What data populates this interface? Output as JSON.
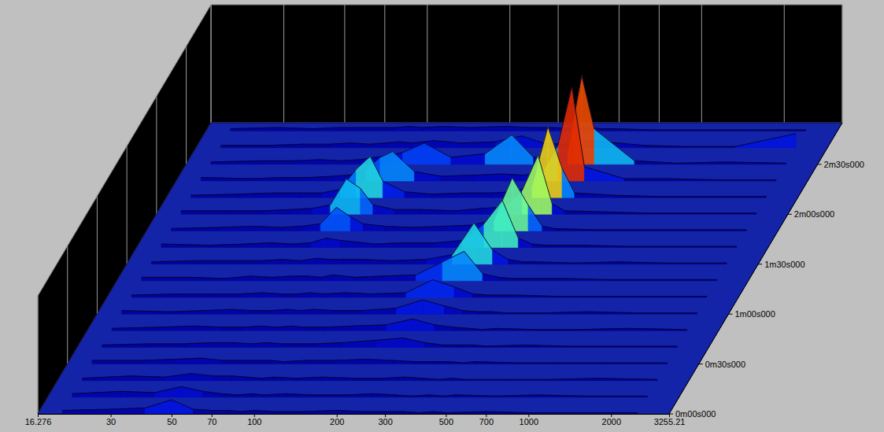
{
  "chart_data": {
    "type": "waterfall3d",
    "log": "x",
    "grid": true,
    "x": [
      20,
      30,
      40,
      50,
      60,
      70,
      80,
      90,
      100,
      120,
      150,
      200,
      250,
      300,
      350,
      400,
      450,
      500,
      700,
      1000,
      1500,
      2500
    ],
    "xlim": [
      16.276,
      3255.21
    ],
    "xticks": [
      16.276,
      30,
      50,
      70,
      100,
      200,
      300,
      500,
      700,
      1000,
      2000,
      3255.21
    ],
    "ylim": [
      0,
      175
    ],
    "yticks": [
      {
        "value": 0,
        "label": "0m00s000"
      },
      {
        "value": 30,
        "label": "0m30s000"
      },
      {
        "value": 60,
        "label": "1m00s000"
      },
      {
        "value": 90,
        "label": "1m30s000"
      },
      {
        "value": 120,
        "label": "2m00s000"
      },
      {
        "value": 150,
        "label": "2m30s000"
      }
    ],
    "zlim": [
      0,
      10
    ],
    "series": [
      {
        "y": 0,
        "values": [
          0.3,
          0.4,
          0.5,
          1.2,
          0.4,
          0.3,
          0.3,
          0.2,
          0.3,
          0.2,
          0.2,
          0.3,
          0.2,
          0.2,
          0.2,
          0.1,
          0.2,
          0.1,
          0.2,
          0.1,
          0.1,
          0.1
        ]
      },
      {
        "y": 10,
        "values": [
          0.3,
          0.5,
          0.4,
          0.9,
          0.5,
          0.3,
          0.2,
          0.3,
          0.2,
          0.3,
          0.2,
          0.2,
          0.3,
          0.2,
          0.1,
          0.2,
          0.1,
          0.2,
          0.1,
          0.2,
          0.1,
          0.1
        ]
      },
      {
        "y": 20,
        "values": [
          0.2,
          0.4,
          0.3,
          0.6,
          0.4,
          0.4,
          0.3,
          0.2,
          0.3,
          0.2,
          0.3,
          0.2,
          0.2,
          0.3,
          0.2,
          0.1,
          0.2,
          0.1,
          0.1,
          0.1,
          0.2,
          0.1
        ]
      },
      {
        "y": 30,
        "values": [
          0.3,
          0.3,
          0.4,
          0.5,
          0.3,
          0.3,
          0.3,
          0.3,
          0.2,
          0.3,
          0.3,
          0.4,
          0.3,
          0.2,
          0.2,
          0.2,
          0.1,
          0.2,
          0.1,
          0.1,
          0.1,
          0.1
        ]
      },
      {
        "y": 40,
        "values": [
          0.2,
          0.3,
          0.3,
          0.4,
          0.4,
          0.3,
          0.4,
          0.3,
          0.3,
          0.3,
          0.4,
          0.6,
          0.8,
          0.4,
          0.2,
          0.2,
          0.2,
          0.1,
          0.2,
          0.1,
          0.1,
          0.1
        ]
      },
      {
        "y": 50,
        "values": [
          0.2,
          0.3,
          0.4,
          0.3,
          0.3,
          0.4,
          0.3,
          0.4,
          0.3,
          0.3,
          0.4,
          0.5,
          1.0,
          0.5,
          0.3,
          0.2,
          0.1,
          0.2,
          0.1,
          0.1,
          0.2,
          0.1
        ]
      },
      {
        "y": 60,
        "values": [
          0.3,
          0.2,
          0.3,
          0.4,
          0.3,
          0.3,
          0.4,
          0.3,
          0.4,
          0.3,
          0.3,
          0.5,
          1.2,
          0.7,
          0.3,
          0.2,
          0.2,
          0.1,
          0.1,
          0.2,
          0.1,
          0.1
        ]
      },
      {
        "y": 70,
        "values": [
          0.2,
          0.3,
          0.3,
          0.3,
          0.4,
          0.3,
          0.3,
          0.4,
          0.3,
          0.4,
          0.3,
          0.4,
          1.5,
          0.9,
          0.3,
          0.2,
          0.2,
          0.2,
          0.1,
          0.1,
          0.1,
          0.1
        ]
      },
      {
        "y": 80,
        "values": [
          0.3,
          0.3,
          0.2,
          0.4,
          0.3,
          0.4,
          0.4,
          0.3,
          0.5,
          0.3,
          0.4,
          0.5,
          1.6,
          2.5,
          0.6,
          0.3,
          0.2,
          0.2,
          0.2,
          0.1,
          0.1,
          0.1
        ]
      },
      {
        "y": 90,
        "values": [
          0.2,
          0.3,
          0.3,
          0.3,
          0.4,
          0.3,
          0.5,
          0.4,
          0.4,
          0.4,
          0.3,
          0.4,
          0.8,
          3.5,
          1.2,
          0.4,
          0.2,
          0.2,
          0.1,
          0.2,
          0.1,
          0.1
        ]
      },
      {
        "y": 100,
        "values": [
          0.3,
          0.2,
          0.3,
          0.4,
          0.3,
          0.4,
          0.8,
          0.6,
          0.5,
          0.3,
          0.4,
          0.4,
          0.6,
          2.0,
          4.0,
          0.8,
          0.3,
          0.2,
          0.2,
          0.1,
          0.1,
          0.1
        ]
      },
      {
        "y": 110,
        "values": [
          0.2,
          0.3,
          0.4,
          0.3,
          0.4,
          0.6,
          2.0,
          1.2,
          0.6,
          0.4,
          0.3,
          0.4,
          0.5,
          0.9,
          4.5,
          2.2,
          0.4,
          0.2,
          0.1,
          0.1,
          0.1,
          0.1
        ]
      },
      {
        "y": 120,
        "values": [
          0.3,
          0.3,
          0.3,
          0.4,
          0.5,
          0.8,
          3.0,
          2.2,
          0.8,
          0.4,
          0.4,
          0.3,
          0.5,
          0.6,
          2.0,
          5.0,
          0.9,
          0.3,
          0.2,
          0.1,
          0.1,
          0.1
        ]
      },
      {
        "y": 130,
        "values": [
          0.2,
          0.3,
          0.4,
          0.4,
          0.4,
          0.7,
          2.4,
          3.5,
          1.4,
          0.5,
          0.3,
          0.4,
          0.4,
          0.5,
          1.0,
          6.0,
          2.5,
          0.4,
          0.2,
          0.1,
          0.1,
          0.1
        ]
      },
      {
        "y": 140,
        "values": [
          0.3,
          0.2,
          0.3,
          0.3,
          0.4,
          0.5,
          1.0,
          2.0,
          2.5,
          0.8,
          0.4,
          0.5,
          0.6,
          0.5,
          0.7,
          3.0,
          8.0,
          1.2,
          0.2,
          0.2,
          0.1,
          0.1
        ]
      },
      {
        "y": 150,
        "values": [
          0.2,
          0.3,
          0.3,
          0.4,
          0.3,
          0.4,
          0.6,
          0.8,
          1.0,
          1.8,
          0.6,
          0.9,
          2.5,
          0.6,
          0.5,
          1.2,
          7.5,
          3.0,
          0.3,
          0.1,
          0.2,
          0.1
        ]
      },
      {
        "y": 160,
        "values": [
          0.2,
          0.2,
          0.3,
          0.3,
          0.4,
          0.3,
          0.4,
          0.5,
          0.4,
          0.6,
          0.4,
          0.5,
          1.0,
          0.4,
          0.3,
          0.4,
          0.6,
          0.5,
          0.2,
          0.1,
          0.1,
          1.2
        ]
      },
      {
        "y": 170,
        "values": [
          0.2,
          0.3,
          0.2,
          0.3,
          0.3,
          0.3,
          0.3,
          0.4,
          0.3,
          0.4,
          0.3,
          0.4,
          0.3,
          0.3,
          0.2,
          0.3,
          0.2,
          0.2,
          0.1,
          0.1,
          0.1,
          0.1
        ]
      }
    ]
  }
}
